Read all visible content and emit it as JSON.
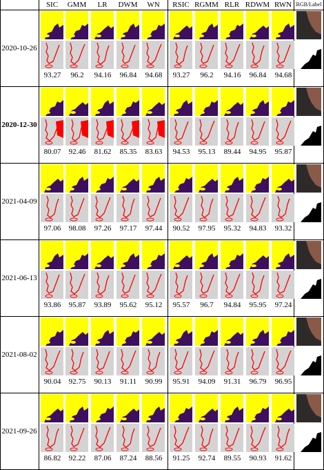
{
  "columns": [
    "SIC",
    "GMM",
    "LR",
    "DWM",
    "WN",
    "RSIC",
    "RGMM",
    "RLR",
    "RDWM",
    "RWN"
  ],
  "last_column_label": "RGB/Label",
  "rows": [
    {
      "date": "2020-10-26",
      "bold": false,
      "scores": [
        "93.27",
        "96.2",
        "94.16",
        "96.84",
        "94.68",
        "93.27",
        "96.2",
        "94.16",
        "96.84",
        "94.68"
      ]
    },
    {
      "date": "2020-12-30",
      "bold": true,
      "scores": [
        "80.07",
        "92.46",
        "81.62",
        "85.35",
        "83.63",
        "94.53",
        "95.13",
        "89.44",
        "94.95",
        "95.87"
      ]
    },
    {
      "date": "2021-04-09",
      "bold": false,
      "scores": [
        "97.06",
        "98.08",
        "97.26",
        "97.17",
        "97.44",
        "90.52",
        "97.95",
        "95.32",
        "94.83",
        "93.32"
      ]
    },
    {
      "date": "2021-06-13",
      "bold": false,
      "scores": [
        "93.86",
        "95.87",
        "93.89",
        "95.62",
        "95.12",
        "95.57",
        "96.7",
        "94.84",
        "95.95",
        "97.24"
      ]
    },
    {
      "date": "2021-08-02",
      "bold": false,
      "scores": [
        "90.04",
        "92.75",
        "90.13",
        "91.11",
        "90.99",
        "95.91",
        "94.09",
        "91.31",
        "96.79",
        "96.95"
      ]
    },
    {
      "date": "2021-09-26",
      "bold": false,
      "scores": [
        "86.82",
        "92.22",
        "87.06",
        "87.24",
        "88.56",
        "91.25",
        "92.74",
        "89.55",
        "90.93",
        "91.62"
      ]
    }
  ],
  "colors": {
    "class_a": "#ffff00",
    "class_b": "#3d0f5e",
    "error_bg": "#d3d3d3",
    "error_line": "#ff0000",
    "rgb_land": "#8a5a48",
    "label_fg": "#ffffff"
  }
}
